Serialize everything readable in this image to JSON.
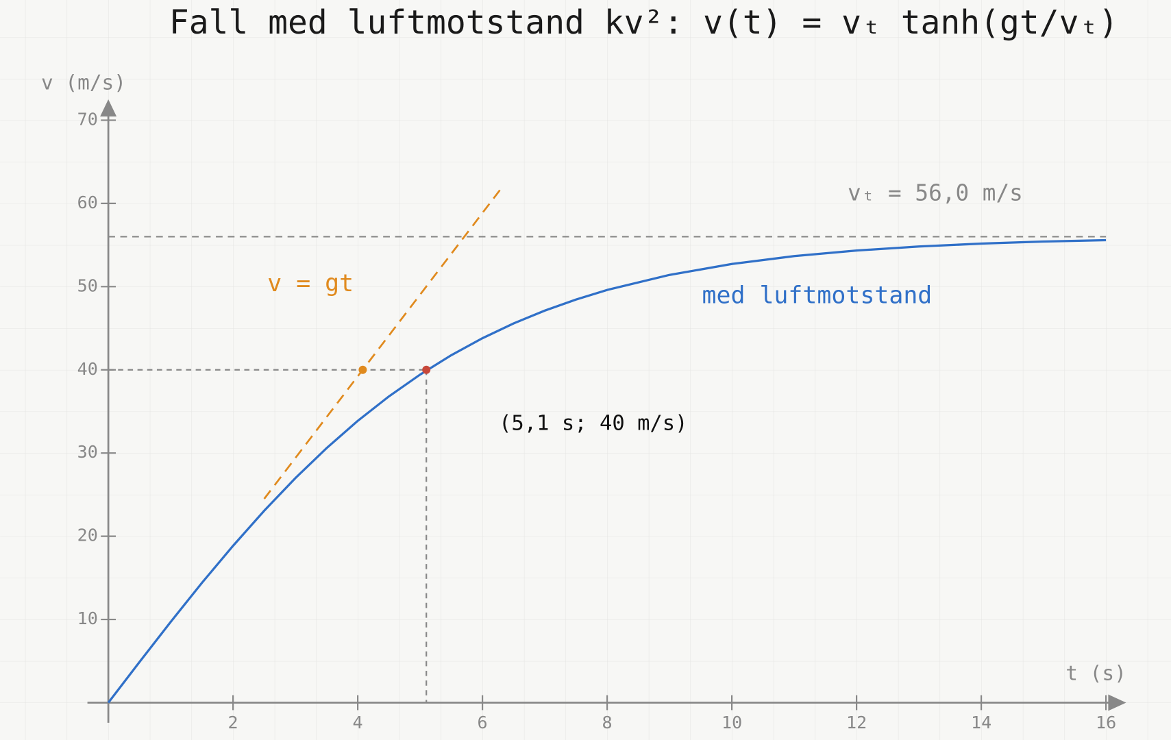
{
  "chart_data": {
    "type": "line",
    "title": "Fall med luftmotstand kv²: v(t) = vₜ tanh(gt/vₜ)",
    "x_label": "t (s)",
    "y_label": "v (m/s)",
    "xlim": [
      0,
      16
    ],
    "ylim": [
      0,
      70
    ],
    "xticks": [
      2,
      4,
      6,
      8,
      10,
      12,
      14,
      16
    ],
    "yticks": [
      10,
      20,
      30,
      40,
      50,
      60,
      70
    ],
    "series": [
      {
        "name": "med luftmotstand",
        "color": "#3070c8",
        "dashed": false,
        "x": [
          0,
          0.5,
          1,
          1.5,
          2,
          2.5,
          3,
          3.5,
          4,
          4.5,
          5,
          5.5,
          6,
          6.5,
          7,
          7.5,
          8,
          9,
          10,
          11,
          12,
          13,
          14,
          15,
          16
        ],
        "values": [
          0,
          4.89,
          9.71,
          14.39,
          18.85,
          23.07,
          26.99,
          30.59,
          33.87,
          36.81,
          39.43,
          41.76,
          43.8,
          45.58,
          47.12,
          48.45,
          49.6,
          51.41,
          52.72,
          53.67,
          54.34,
          54.82,
          55.17,
          55.42,
          55.59
        ]
      },
      {
        "name": "v = gt",
        "color": "#e08a1e",
        "dashed": true,
        "x": [
          2.5,
          6.3
        ],
        "values": [
          24.5,
          61.8
        ]
      }
    ],
    "reference_line": {
      "value": 56,
      "label": "vₜ = 56,0 m/s",
      "color": "#888888"
    },
    "points": [
      {
        "x": 5.1,
        "y": 40,
        "color": "#c8483a",
        "label": "(5,1 s; 40 m/s)"
      },
      {
        "x": 4.08,
        "y": 40,
        "color": "#e08a1e"
      }
    ]
  }
}
